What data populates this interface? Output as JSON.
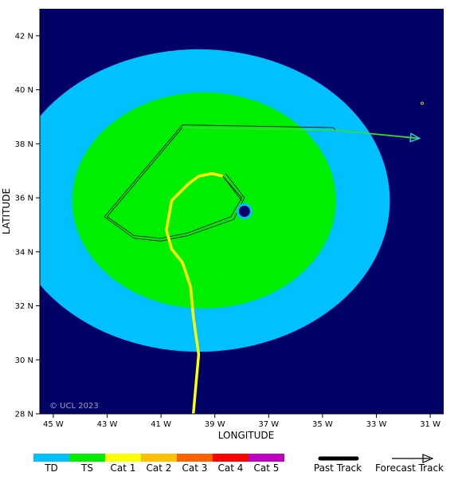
{
  "map": {
    "background": "#000066",
    "copyright": "© UCL 2023",
    "x_axis_label": "LONGITUDE",
    "y_axis_label": "LATITUDE",
    "lon_ticks": [
      "45 W",
      "43 W",
      "41 W",
      "39 W",
      "37 W",
      "35 W",
      "33 W",
      "31 W"
    ],
    "lat_ticks": [
      "42 N",
      "40 N",
      "38 N",
      "36 N",
      "34 N",
      "32 N",
      "30 N",
      "28 N"
    ],
    "lon_range_deg_w": [
      45.5,
      30.5
    ],
    "lat_range_deg_n": [
      28,
      43
    ]
  },
  "wind_fields": [
    {
      "category": "TD",
      "color": "#00c0ff",
      "center_lon_w": 39.6,
      "center_lat_n": 35.9,
      "radius_lon_deg": 7.1,
      "radius_lat_deg": 5.6
    },
    {
      "category": "TS",
      "color": "#00ee00",
      "center_lon_w": 39.4,
      "center_lat_n": 35.9,
      "radius_lon_deg": 4.9,
      "radius_lat_deg": 4.0
    }
  ],
  "storm_center": {
    "lon_w": 37.9,
    "lat_n": 35.5,
    "color": "#000066"
  },
  "past_track": {
    "category": "Cat 1",
    "color": "#ffff00",
    "points": [
      [
        39.8,
        28.0
      ],
      [
        39.6,
        30.2
      ],
      [
        39.8,
        31.6
      ],
      [
        39.9,
        32.7
      ],
      [
        40.2,
        33.6
      ],
      [
        40.6,
        34.1
      ],
      [
        40.8,
        34.8
      ],
      [
        40.6,
        35.9
      ],
      [
        40.0,
        36.5
      ],
      [
        39.6,
        36.8
      ],
      [
        39.1,
        36.9
      ],
      [
        38.7,
        36.8
      ]
    ]
  },
  "forecast_track": {
    "color": "#30e030",
    "points": [
      [
        38.0,
        35.9
      ],
      [
        38.7,
        36.8
      ]
    ],
    "arrow_points": [
      [
        40.2,
        38.6
      ],
      [
        34.5,
        38.5
      ],
      [
        31.4,
        38.2
      ]
    ]
  },
  "forecast_cone": {
    "color": "#000000",
    "points": [
      [
        38.7,
        36.8
      ],
      [
        38.0,
        36.0
      ],
      [
        38.4,
        35.3
      ],
      [
        40.0,
        34.7
      ],
      [
        41.0,
        34.5
      ],
      [
        42.0,
        34.6
      ],
      [
        43.0,
        35.3
      ],
      [
        40.2,
        38.6
      ],
      [
        34.5,
        38.5
      ],
      [
        34.6,
        38.6
      ],
      [
        40.2,
        38.7
      ],
      [
        43.1,
        35.3
      ],
      [
        42.0,
        34.5
      ],
      [
        41.0,
        34.4
      ],
      [
        40.0,
        34.6
      ],
      [
        38.3,
        35.2
      ],
      [
        37.9,
        36.0
      ],
      [
        38.6,
        36.9
      ]
    ]
  },
  "small_marker": {
    "lon_w": 31.3,
    "lat_n": 39.5,
    "color": "#ffff00"
  },
  "legend": {
    "categories": [
      {
        "label": "TD",
        "color": "#00c0ff"
      },
      {
        "label": "TS",
        "color": "#00ee00"
      },
      {
        "label": "Cat 1",
        "color": "#ffff00"
      },
      {
        "label": "Cat 2",
        "color": "#ffc000"
      },
      {
        "label": "Cat 3",
        "color": "#ff6000"
      },
      {
        "label": "Cat 4",
        "color": "#ff0000"
      },
      {
        "label": "Cat 5",
        "color": "#c000c0"
      }
    ],
    "past_track_label": "Past Track",
    "forecast_track_label": "Forecast Track"
  }
}
